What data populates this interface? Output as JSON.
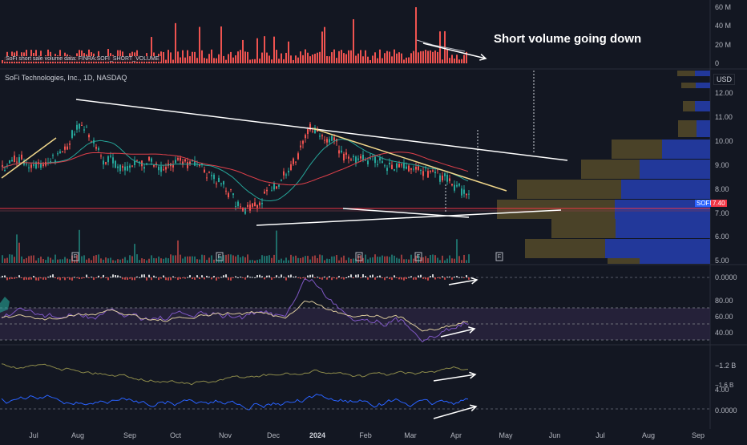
{
  "header": {
    "symbol_title": "SoFi Technologies, Inc., 1D, NASDAQ",
    "currency": "USD",
    "volume_caption": "SoFi short sale volume data: FINRA:SOFI_SHORT_VOLUME"
  },
  "annotation": "Short volume going down",
  "price_tags": {
    "symbol": "SOFI",
    "last": "7.40"
  },
  "axes": {
    "volume_ticks": [
      "60 M",
      "40 M",
      "20 M",
      "0"
    ],
    "price_ticks": [
      "12.00",
      "11.00",
      "10.00",
      "9.00",
      "8.00",
      "7.00",
      "6.00",
      "5.00"
    ],
    "macd_ticks": [
      "0.0000"
    ],
    "rsi_ticks": [
      "80.00",
      "60.00",
      "40.00"
    ],
    "ind3_ticks": [
      "−1.2 B",
      "−1.6 B"
    ],
    "ind4_ticks": [
      "4.00",
      "0.0000"
    ],
    "dates": [
      "Jul",
      "Aug",
      "Sep",
      "Oct",
      "Nov",
      "Dec",
      "2024",
      "Feb",
      "Mar",
      "Apr",
      "May",
      "Jun",
      "Jul",
      "Aug",
      "Sep"
    ]
  },
  "event_markers": [
    "E",
    "E",
    "E",
    "E",
    "E"
  ],
  "colors": {
    "background": "#131722",
    "up": "#26a69a",
    "down": "#ef5350",
    "trendline": "#ffffff",
    "trendline_yellow": "#f0d68a",
    "volume_profile_buy": "#22389a",
    "volume_profile_sell": "#4a4228",
    "rsi_band": "#2a2440"
  }
}
